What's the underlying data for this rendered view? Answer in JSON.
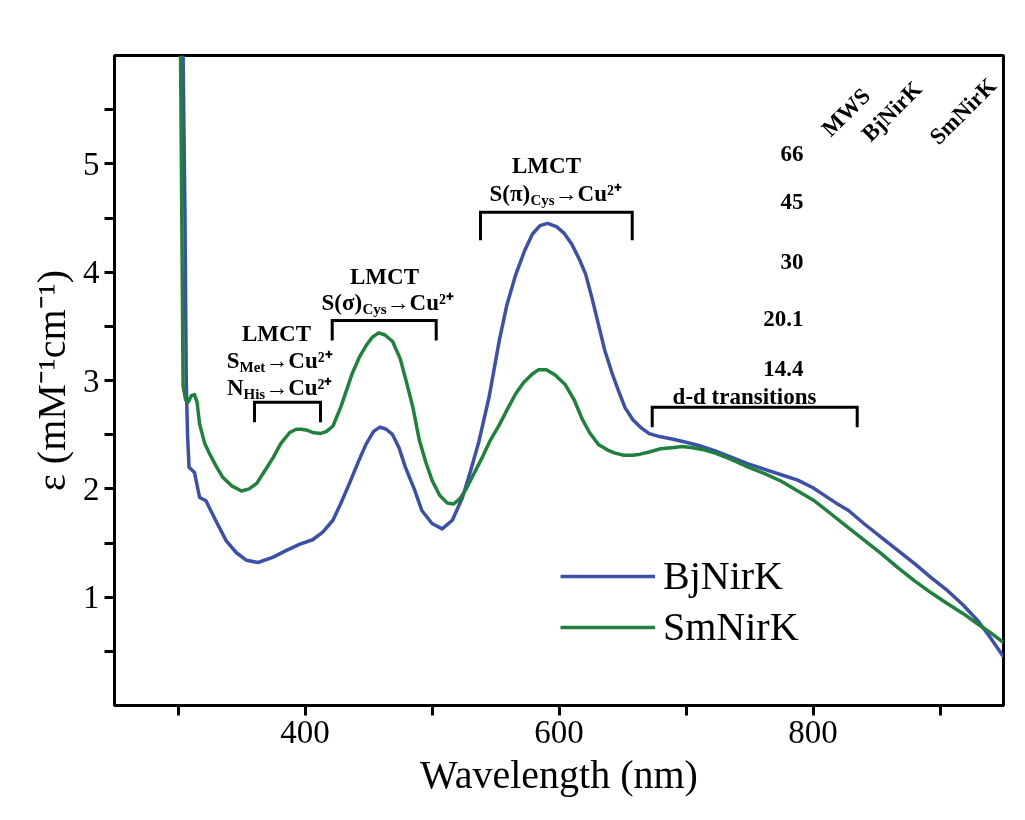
{
  "chart_data": {
    "type": "line",
    "xlabel": "Wavelength (nm)",
    "ylabel": "ε (mM⁻¹cm⁻¹)",
    "xlim": [
      250,
      950
    ],
    "ylim": [
      0,
      6
    ],
    "xticks": [
      {
        "value": 300,
        "label": null
      },
      400,
      {
        "value": 500,
        "label": null
      },
      600,
      {
        "value": 700,
        "label": null
      },
      800,
      {
        "value": 900,
        "label": null
      }
    ],
    "yticks": [
      {
        "value": 0.5,
        "label": null
      },
      1,
      {
        "value": 1.5,
        "label": null
      },
      2,
      {
        "value": 2.5,
        "label": null
      },
      3,
      {
        "value": 3.5,
        "label": null
      },
      4,
      {
        "value": 4.5,
        "label": null
      },
      5,
      {
        "value": 5.5,
        "label": null
      }
    ],
    "legend": "bottom",
    "series": [
      {
        "name": "BjNirK",
        "color": "#3c50aa",
        "x": [
          304,
          305.5,
          306.5,
          307.5,
          308.7,
          313,
          317,
          322,
          330,
          338,
          346,
          354,
          363,
          375,
          385,
          396,
          406,
          414,
          422,
          428,
          435,
          442,
          448,
          454,
          459,
          464,
          469,
          474,
          479,
          486,
          492,
          500,
          508,
          516,
          524,
          530,
          537,
          545,
          553,
          559,
          566,
          573,
          579,
          585,
          591,
          598,
          604,
          610,
          616,
          621,
          626,
          631,
          636,
          642,
          647,
          652,
          658,
          665,
          671,
          680,
          689,
          700,
          710,
          723,
          736,
          749,
          762,
          775,
          788,
          800,
          809,
          818,
          828,
          840,
          854,
          867,
          880,
          893,
          906,
          918,
          930,
          940,
          950
        ],
        "values": [
          6.0,
          4.5,
          3.0,
          2.5,
          2.2,
          2.15,
          1.92,
          1.89,
          1.7,
          1.52,
          1.41,
          1.34,
          1.32,
          1.37,
          1.43,
          1.49,
          1.53,
          1.6,
          1.71,
          1.86,
          2.05,
          2.25,
          2.41,
          2.53,
          2.57,
          2.55,
          2.5,
          2.38,
          2.2,
          2.0,
          1.8,
          1.68,
          1.63,
          1.71,
          1.92,
          2.15,
          2.44,
          2.85,
          3.37,
          3.7,
          3.98,
          4.2,
          4.35,
          4.43,
          4.45,
          4.42,
          4.36,
          4.26,
          4.12,
          3.98,
          3.76,
          3.52,
          3.28,
          3.06,
          2.9,
          2.75,
          2.64,
          2.56,
          2.51,
          2.48,
          2.46,
          2.43,
          2.4,
          2.35,
          2.29,
          2.23,
          2.18,
          2.13,
          2.08,
          2.01,
          1.94,
          1.87,
          1.8,
          1.68,
          1.55,
          1.43,
          1.31,
          1.18,
          1.06,
          0.93,
          0.78,
          0.62,
          0.45
        ]
      },
      {
        "name": "SmNirK",
        "color": "#1e823c",
        "x": [
          302,
          303,
          304,
          306,
          308,
          310.5,
          313,
          315,
          317,
          321,
          325,
          330,
          335,
          342,
          350,
          356,
          362,
          368,
          375,
          381,
          388,
          393,
          397,
          402,
          406,
          412,
          417,
          422,
          428,
          433,
          437,
          443,
          448,
          453,
          458,
          463,
          469,
          475,
          480,
          485,
          490,
          495,
          500,
          506,
          512,
          517,
          522,
          527,
          533,
          540,
          546,
          553,
          560,
          566,
          572,
          579,
          584,
          590,
          597,
          605,
          612,
          618,
          624,
          631,
          638,
          644,
          651,
          658,
          664,
          671,
          680,
          689,
          697,
          705,
          714,
          723,
          736,
          749,
          762,
          775,
          788,
          801,
          814,
          828,
          841,
          854,
          867,
          880,
          893,
          906,
          918,
          930,
          940,
          950
        ],
        "values": [
          6.0,
          4.5,
          2.95,
          2.82,
          2.8,
          2.86,
          2.87,
          2.8,
          2.6,
          2.42,
          2.32,
          2.21,
          2.11,
          2.03,
          1.98,
          2.0,
          2.05,
          2.16,
          2.29,
          2.42,
          2.52,
          2.55,
          2.55,
          2.54,
          2.52,
          2.51,
          2.53,
          2.58,
          2.75,
          2.92,
          3.06,
          3.22,
          3.32,
          3.4,
          3.44,
          3.42,
          3.36,
          3.2,
          2.98,
          2.75,
          2.45,
          2.25,
          2.08,
          1.94,
          1.87,
          1.86,
          1.91,
          2.0,
          2.14,
          2.3,
          2.45,
          2.59,
          2.75,
          2.88,
          2.98,
          3.06,
          3.1,
          3.1,
          3.05,
          2.96,
          2.82,
          2.65,
          2.52,
          2.41,
          2.36,
          2.33,
          2.31,
          2.31,
          2.32,
          2.34,
          2.37,
          2.38,
          2.39,
          2.38,
          2.36,
          2.33,
          2.27,
          2.2,
          2.14,
          2.07,
          1.98,
          1.89,
          1.77,
          1.64,
          1.52,
          1.4,
          1.27,
          1.15,
          1.04,
          0.94,
          0.85,
          0.75,
          0.67,
          0.58
        ]
      }
    ],
    "annotations": [
      "LMCT",
      "S$_{Met}$→Cu²⁺",
      "N$_{His}$→Cu²⁺",
      "LMCT",
      "S(σ)$_{Cys}$→Cu²⁺",
      "LMCT",
      "S(π)$_{Cys}$→Cu²⁺",
      "d-d transitions",
      "MWS",
      "BjNirK",
      "SmNirK",
      "66",
      "45",
      "30",
      "20.1",
      "14.4"
    ]
  }
}
